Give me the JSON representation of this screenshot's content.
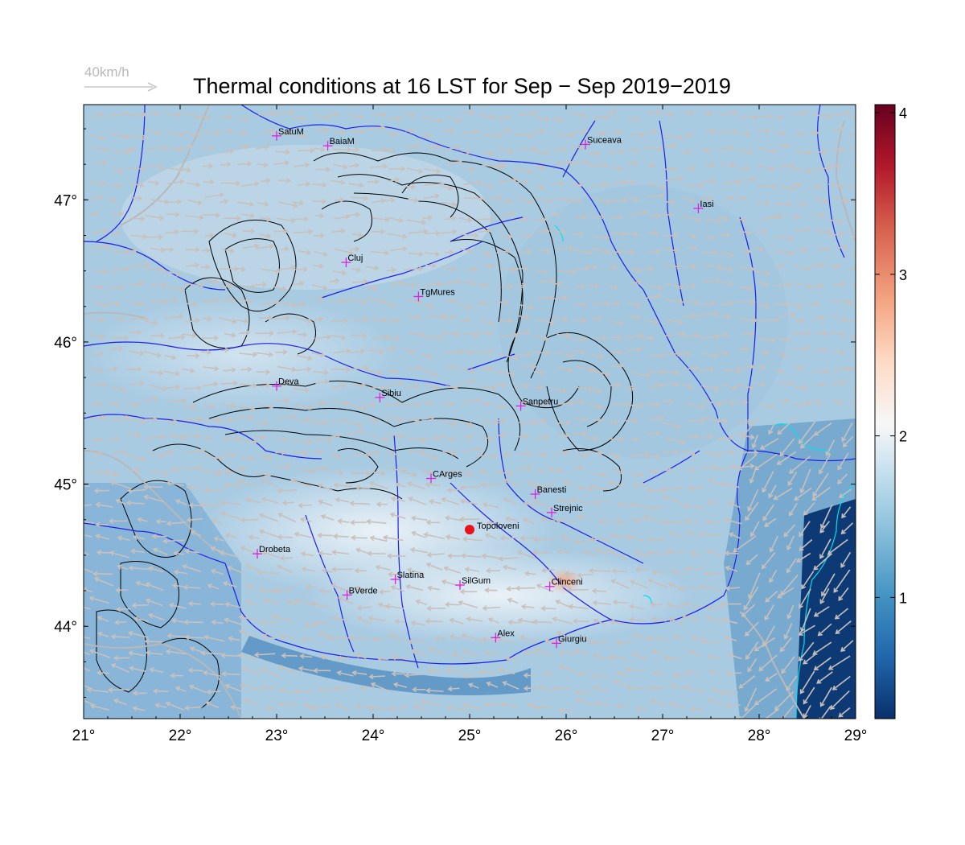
{
  "title": "Thermal conditions at 16 LST for Sep − Sep  2019−2019",
  "wind_reference": {
    "label": "40km/h"
  },
  "axes": {
    "lon_range": [
      21,
      29
    ],
    "lat_range": [
      43.35,
      47.67
    ],
    "lon_ticks": [
      "21°",
      "22°",
      "23°",
      "24°",
      "25°",
      "26°",
      "27°",
      "28°",
      "29°"
    ],
    "lat_ticks": [
      "44°",
      "45°",
      "46°",
      "47°"
    ]
  },
  "colorbar": {
    "range": [
      0.25,
      4.05
    ],
    "ticks": [
      "1",
      "2",
      "3",
      "4"
    ],
    "colors": [
      "#08306b",
      "#2166ac",
      "#4393c3",
      "#92c5de",
      "#d1e5f0",
      "#f7f7f7",
      "#fddbc7",
      "#f4a582",
      "#d6604d",
      "#b2182b",
      "#67001f"
    ]
  },
  "highlight_site": {
    "name": "Topoloveni",
    "lon": 25.0,
    "lat": 44.68,
    "color": "#e8121a"
  },
  "stations": [
    {
      "name": "SatuM",
      "lon": 23.0,
      "lat": 47.45
    },
    {
      "name": "BaiaM",
      "lon": 23.53,
      "lat": 47.38
    },
    {
      "name": "Suceava",
      "lon": 26.2,
      "lat": 47.39
    },
    {
      "name": "Iasi",
      "lon": 27.37,
      "lat": 46.94
    },
    {
      "name": "Cluj",
      "lon": 23.72,
      "lat": 46.56
    },
    {
      "name": "TgMures",
      "lon": 24.47,
      "lat": 46.32
    },
    {
      "name": "Deva",
      "lon": 23.0,
      "lat": 45.69
    },
    {
      "name": "Sibiu",
      "lon": 24.07,
      "lat": 45.61
    },
    {
      "name": "Sanpetru",
      "lon": 25.53,
      "lat": 45.55
    },
    {
      "name": "CArges",
      "lon": 24.6,
      "lat": 45.04
    },
    {
      "name": "Banesti",
      "lon": 25.68,
      "lat": 44.93
    },
    {
      "name": "Strejnic",
      "lon": 25.85,
      "lat": 44.8
    },
    {
      "name": "Drobeta",
      "lon": 22.8,
      "lat": 44.51
    },
    {
      "name": "Slatina",
      "lon": 24.23,
      "lat": 44.33
    },
    {
      "name": "SilGum",
      "lon": 24.9,
      "lat": 44.29
    },
    {
      "name": "Clinceni",
      "lon": 25.83,
      "lat": 44.28
    },
    {
      "name": "BVerde",
      "lon": 23.73,
      "lat": 44.22
    },
    {
      "name": "Alex",
      "lon": 25.27,
      "lat": 43.92
    },
    {
      "name": "Giurgiu",
      "lon": 25.9,
      "lat": 43.88
    }
  ],
  "colors": {
    "station_marker": "#e020e0",
    "rivers": "#1e1ee6",
    "contours": "#000000",
    "wind": "#c8c0bc",
    "coast": "#00e0ee"
  }
}
